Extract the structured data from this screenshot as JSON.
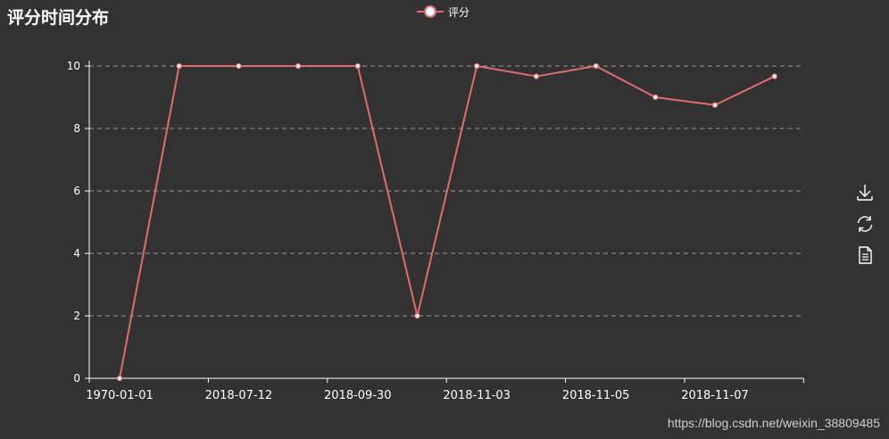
{
  "title": "评分时间分布",
  "legend": {
    "label": "评分"
  },
  "watermark": "https://blog.csdn.net/weixin_38809485",
  "colors": {
    "background": "#323232",
    "series": "#e06c6c",
    "axis": "#ffffff",
    "grid": "#9a9a9a"
  },
  "toolbox": {
    "icons": [
      "download-icon",
      "refresh-icon",
      "data-view-icon"
    ]
  },
  "chart_data": {
    "type": "line",
    "title": "评分时间分布",
    "xlabel": "",
    "ylabel": "",
    "ylim": [
      0,
      10
    ],
    "yticks": [
      0,
      2,
      4,
      6,
      8,
      10
    ],
    "grid": "horizontal dashed",
    "legend": "top-center",
    "categories": [
      "1970-01-01",
      "",
      "",
      "",
      "",
      "",
      "",
      "",
      "",
      "",
      "",
      ""
    ],
    "category_labels": [
      {
        "index": 0,
        "text": "1970-01-01"
      },
      {
        "index": 2,
        "text": "2018-07-12"
      },
      {
        "index": 4,
        "text": "2018-09-30"
      },
      {
        "index": 6,
        "text": "2018-11-03"
      },
      {
        "index": 8,
        "text": "2018-11-05"
      },
      {
        "index": 10,
        "text": "2018-11-07"
      }
    ],
    "series": [
      {
        "name": "评分",
        "values": [
          0,
          10,
          10,
          10,
          10,
          2,
          10,
          9.67,
          10,
          9,
          8.75,
          9.67
        ]
      }
    ]
  }
}
